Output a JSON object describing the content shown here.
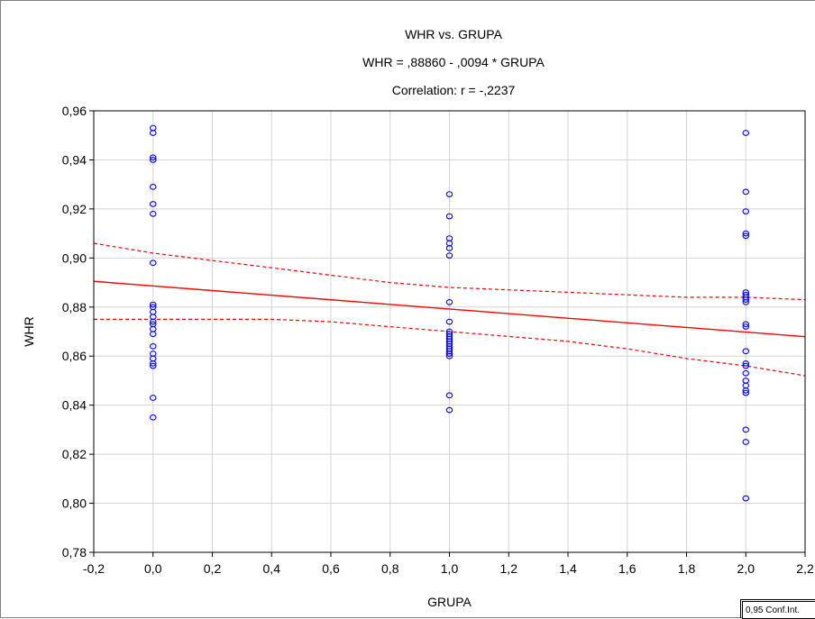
{
  "chart_data": {
    "type": "scatter",
    "title": "WHR vs. GRUPA",
    "subtitle": "WHR = ,88860 - ,0094  * GRUPA",
    "annotation": "Correlation: r = -,2237",
    "xlabel": "GRUPA",
    "ylabel": "WHR",
    "xlim": [
      -0.2,
      2.2
    ],
    "ylim": [
      0.78,
      0.96
    ],
    "x_ticks": [
      -0.2,
      0.0,
      0.2,
      0.4,
      0.6,
      0.8,
      1.0,
      1.2,
      1.4,
      1.6,
      1.8,
      2.0,
      2.2
    ],
    "x_tick_labels": [
      "-0,2",
      "0,0",
      "0,2",
      "0,4",
      "0,6",
      "0,8",
      "1,0",
      "1,2",
      "1,4",
      "1,6",
      "1,8",
      "2,0",
      "2,2"
    ],
    "y_ticks": [
      0.78,
      0.8,
      0.82,
      0.84,
      0.86,
      0.88,
      0.9,
      0.92,
      0.94,
      0.96
    ],
    "y_tick_labels": [
      "0,78",
      "0,80",
      "0,82",
      "0,84",
      "0,86",
      "0,88",
      "0,90",
      "0,92",
      "0,94",
      "0,96"
    ],
    "grid": true,
    "legend": "0,95 Conf.Int.",
    "legend_position": "bottom-right",
    "series": [
      {
        "x": [
          0,
          0,
          0,
          0,
          0,
          0,
          0,
          0,
          0,
          0,
          0,
          0,
          0,
          0,
          0,
          0,
          0,
          0,
          0,
          0,
          0,
          0,
          0
        ],
        "y": [
          0.953,
          0.951,
          0.941,
          0.94,
          0.929,
          0.922,
          0.918,
          0.898,
          0.881,
          0.88,
          0.878,
          0.874,
          0.873,
          0.871,
          0.869,
          0.864,
          0.861,
          0.859,
          0.857,
          0.856,
          0.843,
          0.835,
          0.876
        ],
        "color": "#0000ff"
      },
      {
        "x": [
          1,
          1,
          1,
          1,
          1,
          1,
          1,
          1,
          1,
          1,
          1,
          1,
          1,
          1,
          1,
          1,
          1,
          1,
          1,
          1,
          1,
          1
        ],
        "y": [
          0.926,
          0.917,
          0.908,
          0.906,
          0.904,
          0.901,
          0.882,
          0.874,
          0.87,
          0.868,
          0.867,
          0.866,
          0.865,
          0.864,
          0.863,
          0.862,
          0.861,
          0.86,
          0.844,
          0.838,
          0.869,
          0.861
        ],
        "color": "#0000ff"
      },
      {
        "x": [
          2,
          2,
          2,
          2,
          2,
          2,
          2,
          2,
          2,
          2,
          2,
          2,
          2,
          2,
          2,
          2,
          2,
          2,
          2,
          2,
          2,
          2,
          2
        ],
        "y": [
          0.951,
          0.927,
          0.919,
          0.91,
          0.909,
          0.886,
          0.885,
          0.883,
          0.882,
          0.873,
          0.872,
          0.862,
          0.857,
          0.853,
          0.85,
          0.848,
          0.846,
          0.845,
          0.83,
          0.825,
          0.802,
          0.884,
          0.856
        ],
        "color": "#0000ff"
      }
    ],
    "regression": {
      "intercept": 0.8886,
      "slope": -0.0094,
      "color": "#ff0000"
    },
    "confidence_band": {
      "x": [
        -0.2,
        0.0,
        0.2,
        0.4,
        0.6,
        0.8,
        1.0,
        1.2,
        1.4,
        1.6,
        1.8,
        2.0,
        2.2
      ],
      "upper": [
        0.906,
        0.902,
        0.899,
        0.896,
        0.893,
        0.89,
        0.888,
        0.887,
        0.886,
        0.885,
        0.884,
        0.884,
        0.883
      ],
      "lower": [
        0.875,
        0.875,
        0.875,
        0.875,
        0.874,
        0.872,
        0.87,
        0.868,
        0.866,
        0.863,
        0.859,
        0.856,
        0.852
      ],
      "color": "#ff0000"
    }
  }
}
